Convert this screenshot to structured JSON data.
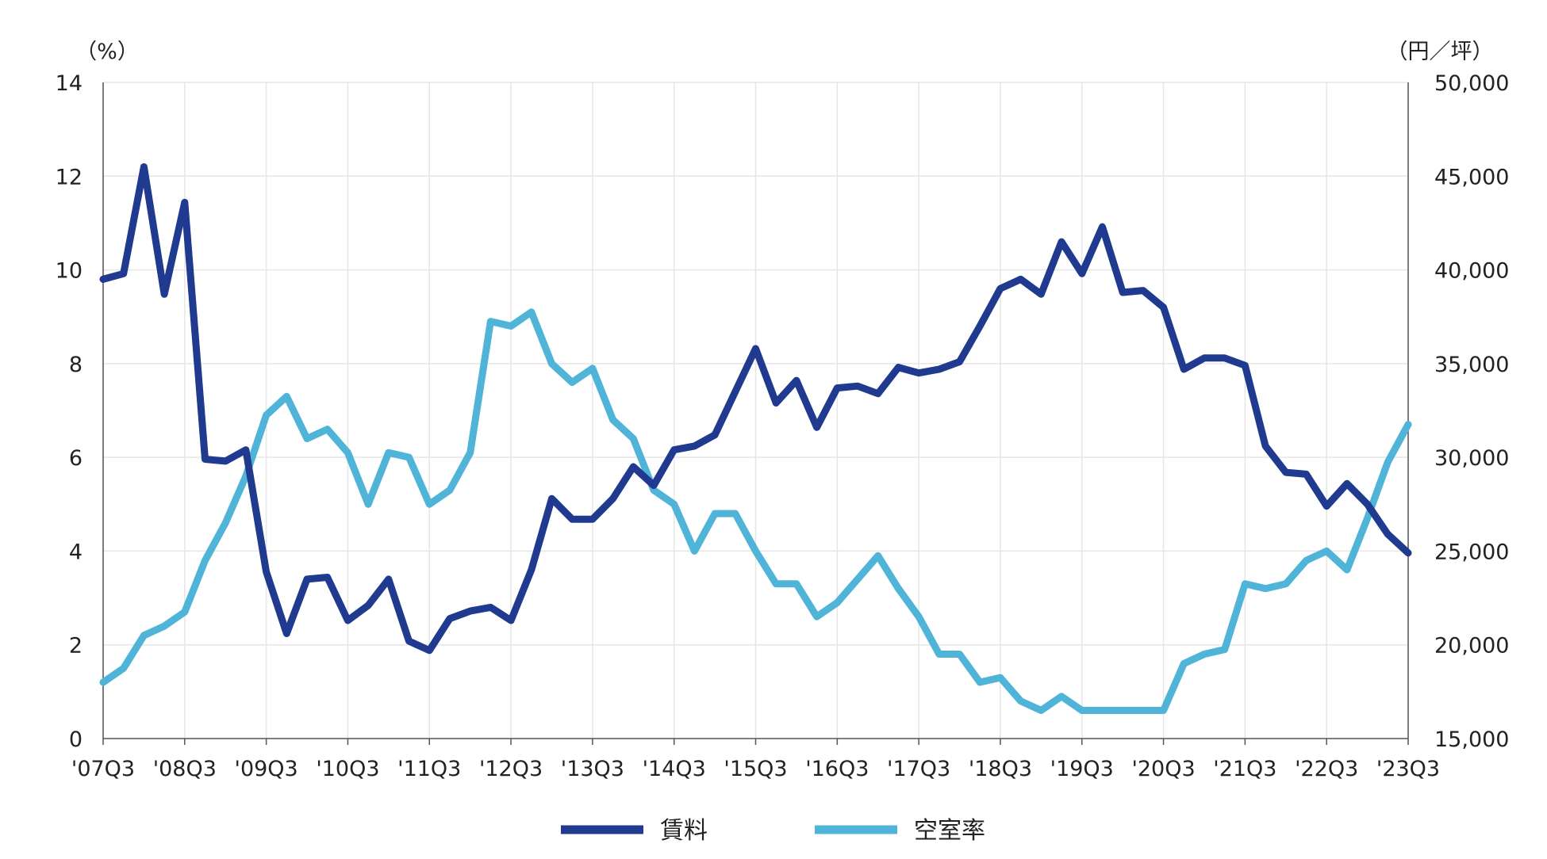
{
  "chart_data": {
    "type": "line",
    "title": "",
    "y_left_unit": "（%）",
    "y_right_unit": "（円／坪）",
    "y_left_lim": [
      0,
      14
    ],
    "y_left_ticks": [
      0,
      2,
      4,
      6,
      8,
      10,
      12,
      14
    ],
    "y_right_lim": [
      15000,
      50000
    ],
    "y_right_ticks": [
      15000,
      20000,
      25000,
      30000,
      35000,
      40000,
      45000,
      50000
    ],
    "y_right_tick_labels": [
      "15,000",
      "20,000",
      "25,000",
      "30,000",
      "35,000",
      "40,000",
      "45,000",
      "50,000"
    ],
    "x_tick_labels": [
      "'07Q3",
      "'08Q3",
      "'09Q3",
      "'10Q3",
      "'11Q3",
      "'12Q3",
      "'13Q3",
      "'14Q3",
      "'15Q3",
      "'16Q3",
      "'17Q3",
      "'18Q3",
      "'19Q3",
      "'20Q3",
      "'21Q3",
      "'22Q3",
      "'23Q3"
    ],
    "grid": true,
    "legend_position": "bottom-center",
    "series": [
      {
        "name": "賃料",
        "axis": "right",
        "color": "#1f3a8f",
        "values": [
          39500,
          39800,
          45500,
          38700,
          43600,
          29900,
          29800,
          30400,
          23900,
          20600,
          23500,
          23600,
          21300,
          22100,
          23500,
          20200,
          19700,
          21400,
          21800,
          22000,
          21300,
          24000,
          27800,
          26700,
          26700,
          27800,
          29500,
          28500,
          30400,
          30600,
          31200,
          33500,
          35800,
          32900,
          34100,
          31600,
          33700,
          33800,
          33400,
          34800,
          34500,
          34700,
          35100,
          37000,
          39000,
          39500,
          38700,
          41500,
          39800,
          42300,
          38800,
          38900,
          38000,
          34700,
          35300,
          35300,
          34900,
          30600,
          29200,
          29100,
          27400,
          28600,
          27500,
          25900,
          24900
        ]
      },
      {
        "name": "空室率",
        "axis": "left",
        "color": "#4fb4d8",
        "values": [
          1.2,
          1.5,
          2.2,
          2.4,
          2.7,
          3.8,
          4.6,
          5.6,
          6.9,
          7.3,
          6.4,
          6.6,
          6.1,
          5.0,
          6.1,
          6.0,
          5.0,
          5.3,
          6.1,
          8.9,
          8.8,
          9.1,
          8.0,
          7.6,
          7.9,
          6.8,
          6.4,
          5.3,
          5.0,
          4.0,
          4.8,
          4.8,
          4.0,
          3.3,
          3.3,
          2.6,
          2.9,
          3.4,
          3.9,
          3.2,
          2.6,
          1.8,
          1.8,
          1.2,
          1.3,
          0.8,
          0.6,
          0.9,
          0.6,
          0.6,
          0.6,
          0.6,
          0.6,
          1.6,
          1.8,
          1.9,
          3.3,
          3.2,
          3.3,
          3.8,
          4.0,
          3.6,
          4.7,
          5.9,
          6.7
        ]
      }
    ]
  }
}
